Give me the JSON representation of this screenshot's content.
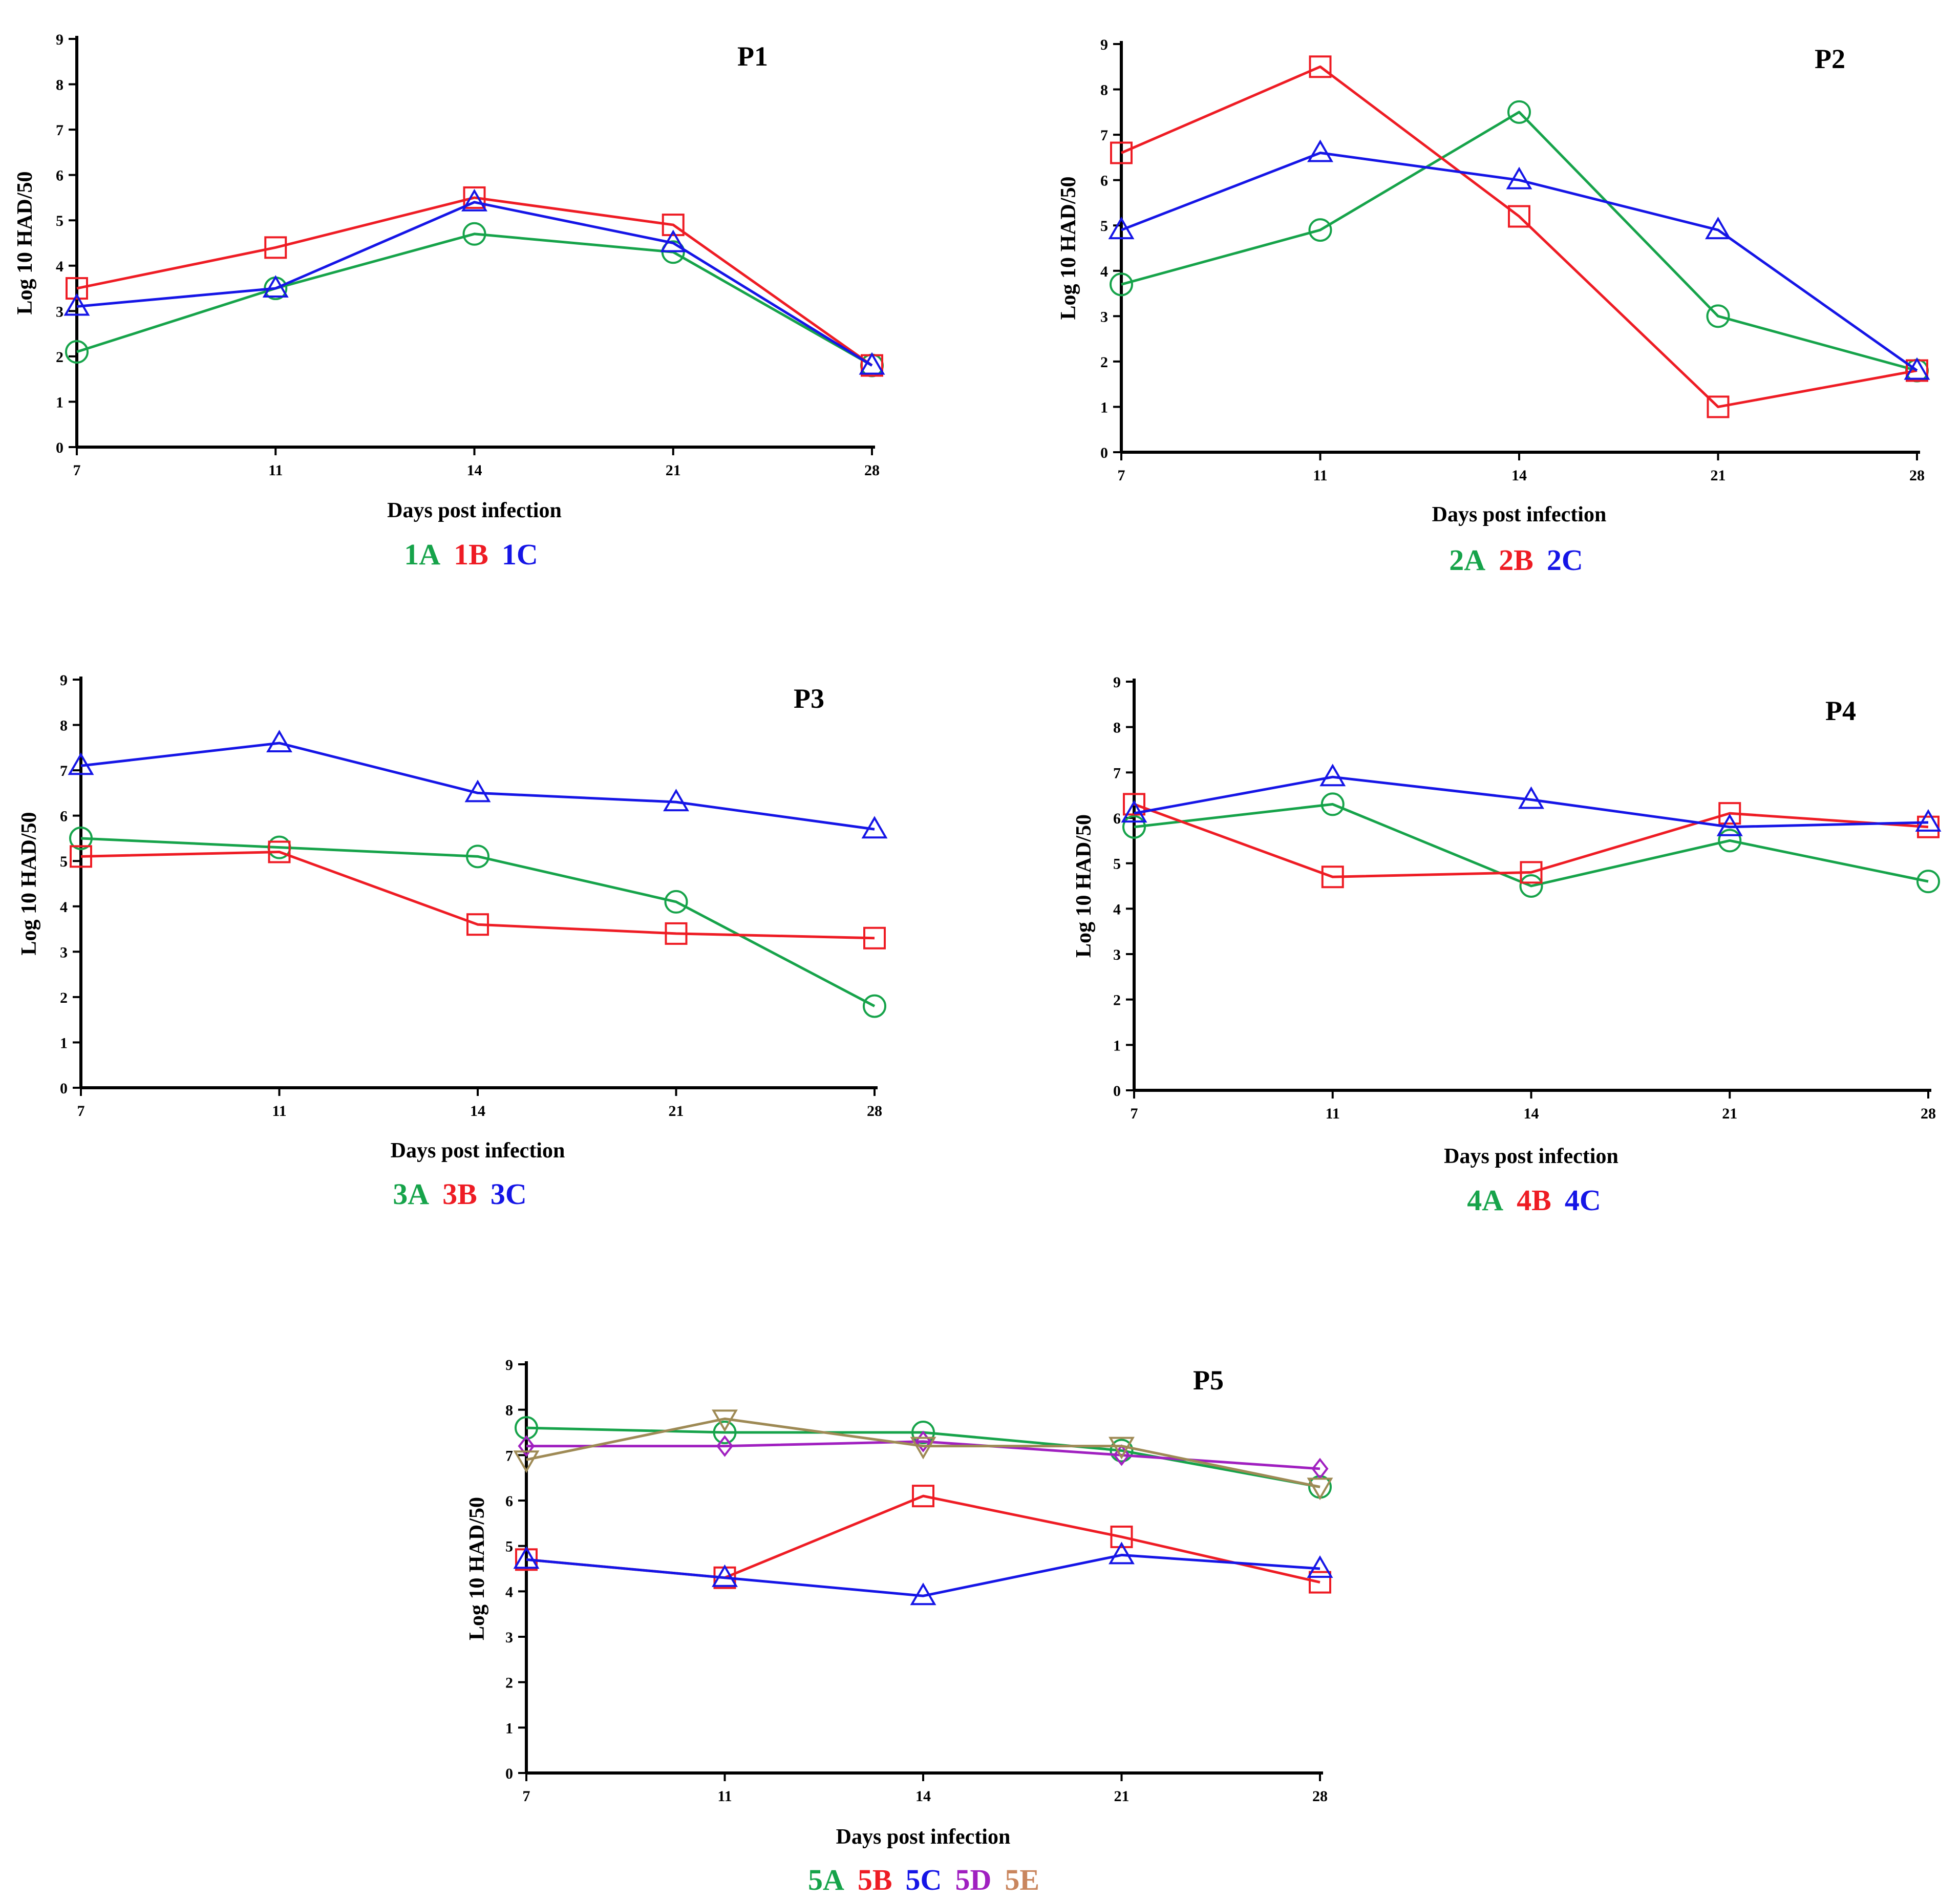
{
  "colors": {
    "green": "#16a34a",
    "red": "#ee1c24",
    "blue": "#1515e6",
    "purple": "#a020c0",
    "olive": "#9e8a55",
    "legend_brown": "#c9865e",
    "axis": "#000000"
  },
  "chart_data": [
    {
      "type": "line",
      "title": "P1",
      "xlabel": "Days post infection",
      "ylabel": "Log 10 HAD/50",
      "categories": [
        "7",
        "11",
        "14",
        "21",
        "28"
      ],
      "yticks": [
        "0",
        "1",
        "2",
        "3",
        "4",
        "5",
        "6",
        "7",
        "8",
        "9"
      ],
      "ylim": [
        0,
        9
      ],
      "series": [
        {
          "name": "1A",
          "color": "#16a34a",
          "marker": "circle",
          "values": [
            2.1,
            3.5,
            4.7,
            4.3,
            1.8
          ]
        },
        {
          "name": "1B",
          "color": "#ee1c24",
          "marker": "square",
          "values": [
            3.5,
            4.4,
            5.5,
            4.9,
            1.8
          ]
        },
        {
          "name": "1C",
          "color": "#1515e6",
          "marker": "triangle-up",
          "values": [
            3.1,
            3.5,
            5.4,
            4.5,
            1.8
          ]
        }
      ]
    },
    {
      "type": "line",
      "title": "P2",
      "xlabel": "Days post infection",
      "ylabel": "Log 10 HAD/50",
      "categories": [
        "7",
        "11",
        "14",
        "21",
        "28"
      ],
      "yticks": [
        "0",
        "1",
        "2",
        "3",
        "4",
        "5",
        "6",
        "7",
        "8",
        "9"
      ],
      "ylim": [
        0,
        9
      ],
      "series": [
        {
          "name": "2A",
          "color": "#16a34a",
          "marker": "circle",
          "values": [
            3.7,
            4.9,
            7.5,
            3.0,
            1.8
          ]
        },
        {
          "name": "2B",
          "color": "#ee1c24",
          "marker": "square",
          "values": [
            6.6,
            8.5,
            5.2,
            1.0,
            1.8
          ]
        },
        {
          "name": "2C",
          "color": "#1515e6",
          "marker": "triangle-up",
          "values": [
            4.9,
            6.6,
            6.0,
            4.9,
            1.8
          ]
        }
      ]
    },
    {
      "type": "line",
      "title": "P3",
      "xlabel": "Days post infection",
      "ylabel": "Log 10 HAD/50",
      "categories": [
        "7",
        "11",
        "14",
        "21",
        "28"
      ],
      "yticks": [
        "0",
        "1",
        "2",
        "3",
        "4",
        "5",
        "6",
        "7",
        "8",
        "9"
      ],
      "ylim": [
        0,
        9
      ],
      "series": [
        {
          "name": "3A",
          "color": "#16a34a",
          "marker": "circle",
          "values": [
            5.5,
            5.3,
            5.1,
            4.1,
            1.8
          ]
        },
        {
          "name": "3B",
          "color": "#ee1c24",
          "marker": "square",
          "values": [
            5.1,
            5.2,
            3.6,
            3.4,
            3.3
          ]
        },
        {
          "name": "3C",
          "color": "#1515e6",
          "marker": "triangle-up",
          "values": [
            7.1,
            7.6,
            6.5,
            6.3,
            5.7
          ]
        }
      ]
    },
    {
      "type": "line",
      "title": "P4",
      "xlabel": "Days post infection",
      "ylabel": "Log 10 HAD/50",
      "categories": [
        "7",
        "11",
        "14",
        "21",
        "28"
      ],
      "yticks": [
        "0",
        "1",
        "2",
        "3",
        "4",
        "5",
        "6",
        "7",
        "8",
        "9"
      ],
      "ylim": [
        0,
        9
      ],
      "series": [
        {
          "name": "4A",
          "color": "#16a34a",
          "marker": "circle",
          "values": [
            5.8,
            6.3,
            4.5,
            5.5,
            4.6
          ]
        },
        {
          "name": "4B",
          "color": "#ee1c24",
          "marker": "square",
          "values": [
            6.3,
            4.7,
            4.8,
            6.1,
            5.8
          ]
        },
        {
          "name": "4C",
          "color": "#1515e6",
          "marker": "triangle-up",
          "values": [
            6.1,
            6.9,
            6.4,
            5.8,
            5.9
          ]
        }
      ]
    },
    {
      "type": "line",
      "title": "P5",
      "xlabel": "Days post infection",
      "ylabel": "Log 10 HAD/50",
      "categories": [
        "7",
        "11",
        "14",
        "21",
        "28"
      ],
      "yticks": [
        "0",
        "1",
        "2",
        "3",
        "4",
        "5",
        "6",
        "7",
        "8",
        "9"
      ],
      "ylim": [
        0,
        9
      ],
      "series": [
        {
          "name": "5A",
          "color": "#16a34a",
          "marker": "circle",
          "values": [
            7.6,
            7.5,
            7.5,
            7.1,
            6.3
          ]
        },
        {
          "name": "5B",
          "color": "#ee1c24",
          "marker": "square",
          "values": [
            4.7,
            4.3,
            6.1,
            5.2,
            4.2
          ]
        },
        {
          "name": "5C",
          "color": "#1515e6",
          "marker": "triangle-up",
          "values": [
            4.7,
            4.3,
            3.9,
            4.8,
            4.5
          ]
        },
        {
          "name": "5D",
          "color": "#a020c0",
          "marker": "diamond",
          "values": [
            7.2,
            7.2,
            7.3,
            7.0,
            6.7
          ]
        },
        {
          "name": "5E",
          "color": "#9e8a55",
          "legend_color": "#c9865e",
          "marker": "triangle-down",
          "values": [
            6.9,
            7.8,
            7.2,
            7.2,
            6.3
          ]
        }
      ]
    }
  ]
}
